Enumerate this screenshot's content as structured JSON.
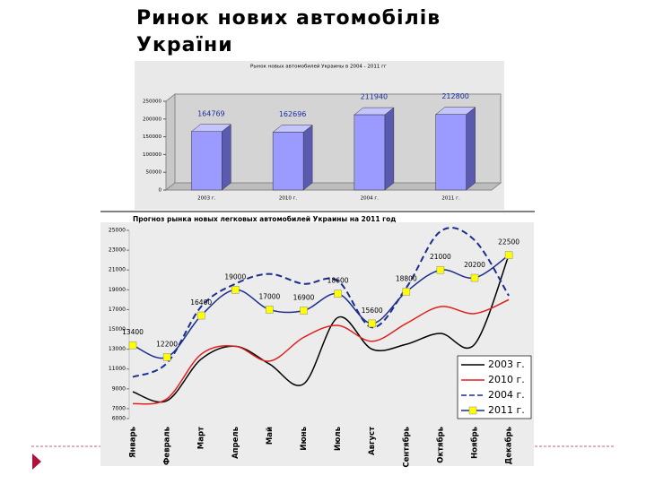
{
  "title": "Ринок нових автомобілів України",
  "chart_data": [
    {
      "type": "bar3d",
      "title": "Рынок новых автомобилей Украины в 2004 - 2011 гг",
      "categories": [
        "2003 г.",
        "2010 г.",
        "2004 г.",
        "2011 г."
      ],
      "values": [
        164769,
        162696,
        211940,
        212800
      ],
      "color": "#9a9aff",
      "ylim": [
        0,
        250000
      ],
      "yticks": [
        0,
        50000,
        100000,
        150000,
        200000,
        250000
      ]
    },
    {
      "type": "line",
      "title": "Прогноз рынка новых легковых автомобилей Украины на 2011 год",
      "categories": [
        "Январь",
        "Февраль",
        "Март",
        "Апрель",
        "Май",
        "Июнь",
        "Июль",
        "Август",
        "Сентябрь",
        "Октябрь",
        "Ноябрь",
        "Декабрь"
      ],
      "series": [
        {
          "name": "2003 г.",
          "color": "#000000",
          "style": "solid",
          "values": [
            8700,
            7800,
            12000,
            13300,
            11500,
            9500,
            16200,
            13000,
            13500,
            14600,
            13500,
            22500
          ]
        },
        {
          "name": "2010 г.",
          "color": "#e0201c",
          "style": "solid",
          "values": [
            7500,
            8000,
            12500,
            13300,
            11800,
            14200,
            15400,
            13800,
            15600,
            17300,
            16600,
            18000
          ]
        },
        {
          "name": "2004 г.",
          "color": "#1c2e8c",
          "style": "dashed",
          "values": [
            10200,
            11600,
            17300,
            19600,
            20600,
            19600,
            19900,
            15200,
            19200,
            24900,
            24000,
            18400
          ]
        },
        {
          "name": "2011 г.",
          "color": "#1c2e8c",
          "style": "solid",
          "marker": "square",
          "marker_color": "#ffff00",
          "show_labels": true,
          "values": [
            13400,
            12200,
            16400,
            19000,
            17000,
            16900,
            18600,
            15600,
            18800,
            21000,
            20200,
            22500
          ]
        }
      ],
      "ylim": [
        6000,
        25000
      ],
      "yticks": [
        6000,
        7000,
        9000,
        11000,
        13000,
        15000,
        17000,
        19000,
        21000,
        23000,
        25000
      ],
      "legend": "lower right"
    }
  ]
}
